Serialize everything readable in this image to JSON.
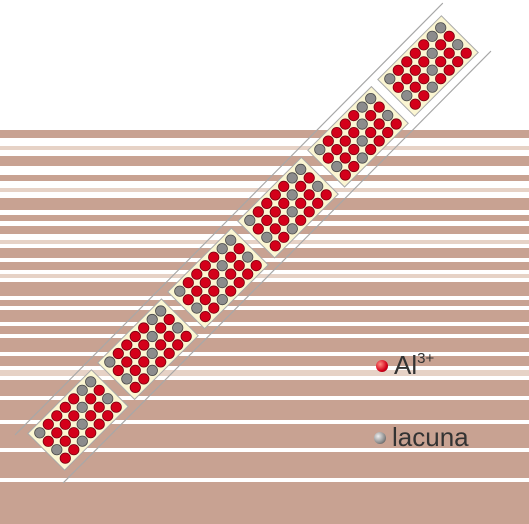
{
  "legend": {
    "al_base": "Al",
    "al_charge": "3+",
    "lacuna": "lacuna"
  },
  "colors": {
    "band": "#c8a292",
    "band_light": "#e6d2c6",
    "cell_fill": "#fbf6d2",
    "cell_edge": "#a8a8a8",
    "al_atom": "#d4001a",
    "lacuna_atom": "#8c8c8c"
  }
}
